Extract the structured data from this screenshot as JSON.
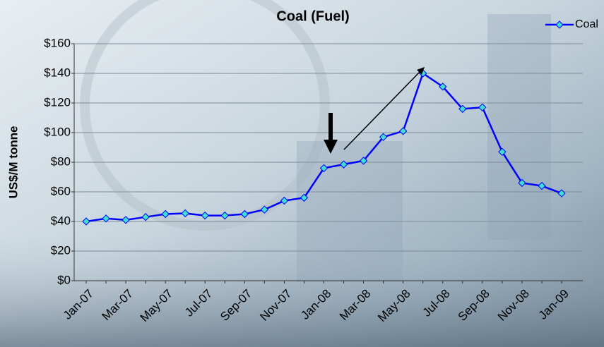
{
  "chart_data": {
    "type": "line",
    "title": "Coal (Fuel)",
    "y_label": "US$/M tonne",
    "categories": [
      "Jan-07",
      null,
      "Mar-07",
      null,
      "May-07",
      null,
      "Jul-07",
      null,
      "Sep-07",
      null,
      "Nov-07",
      null,
      "Jan-08",
      null,
      "Mar-08",
      null,
      "May-08",
      null,
      "Jul-08",
      null,
      "Sep-08",
      null,
      "Nov-08",
      null,
      "Jan-09"
    ],
    "series": [
      {
        "name": "Coal",
        "color": "#0000ff",
        "marker_color": "#40e0d0",
        "values": [
          40,
          42,
          41,
          43,
          45,
          45.5,
          44,
          44,
          45,
          48,
          54,
          56,
          76,
          78.5,
          81,
          97,
          101,
          140,
          131,
          116,
          117,
          87,
          66,
          64,
          59
        ]
      }
    ],
    "ylim": [
      0,
      160
    ],
    "yticks": [
      {
        "value": 0,
        "label": "$0"
      },
      {
        "value": 20,
        "label": "$20"
      },
      {
        "value": 40,
        "label": "$40"
      },
      {
        "value": 60,
        "label": "$60"
      },
      {
        "value": 80,
        "label": "$80"
      },
      {
        "value": 100,
        "label": "$100"
      },
      {
        "value": 120,
        "label": "$120"
      },
      {
        "value": 140,
        "label": "$140"
      },
      {
        "value": 160,
        "label": "$160"
      }
    ],
    "grid": true,
    "legend": "top-right"
  }
}
